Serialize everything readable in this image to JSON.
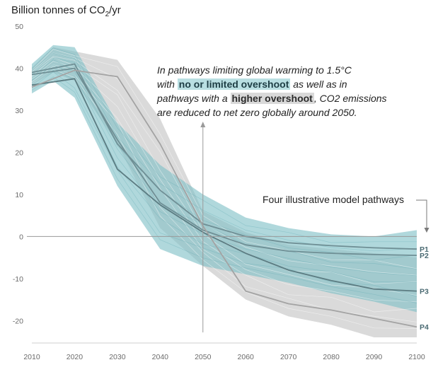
{
  "chart_data": {
    "type": "line",
    "title": "Billion tonnes of CO",
    "title_sub": "2",
    "title_suffix": "/yr",
    "xlim": [
      2010,
      2100
    ],
    "ylim": [
      -25,
      50
    ],
    "x_ticks": [
      2010,
      2020,
      2030,
      2040,
      2050,
      2060,
      2070,
      2080,
      2090,
      2100
    ],
    "y_ticks": [
      50,
      40,
      30,
      20,
      10,
      0,
      -10,
      -20
    ],
    "vertical_marker_x": 2050,
    "annotation": {
      "part1": "In pathways limiting global warming to 1.5°C",
      "part2": "with ",
      "hl1": "no or limited overshoot",
      "part3": " as well as in",
      "part4": "pathways with a ",
      "hl2": "higher overshoot",
      "part5": ", CO2 emissions",
      "part6": "are reduced to net zero globally around 2050."
    },
    "pathways_label": "Four illustrative model pathways",
    "bands": [
      {
        "name": "higher overshoot",
        "color": "#d3d3d3",
        "upper": [
          [
            2010,
            40
          ],
          [
            2015,
            45
          ],
          [
            2020,
            44
          ],
          [
            2030,
            42
          ],
          [
            2040,
            28
          ],
          [
            2050,
            6
          ],
          [
            2060,
            1
          ],
          [
            2070,
            -2
          ],
          [
            2080,
            -3
          ],
          [
            2090,
            -4
          ],
          [
            2100,
            -5
          ]
        ],
        "lower": [
          [
            2010,
            36
          ],
          [
            2015,
            39
          ],
          [
            2020,
            37
          ],
          [
            2030,
            22
          ],
          [
            2040,
            2
          ],
          [
            2050,
            -7
          ],
          [
            2060,
            -15
          ],
          [
            2070,
            -19
          ],
          [
            2080,
            -21
          ],
          [
            2090,
            -24
          ],
          [
            2100,
            -24
          ]
        ]
      },
      {
        "name": "no or limited overshoot",
        "color": "#7fc0c6",
        "upper": [
          [
            2010,
            41
          ],
          [
            2015,
            45.5
          ],
          [
            2020,
            45
          ],
          [
            2030,
            27
          ],
          [
            2040,
            17
          ],
          [
            2050,
            10
          ],
          [
            2060,
            4.5
          ],
          [
            2070,
            2
          ],
          [
            2080,
            0.5
          ],
          [
            2090,
            0
          ],
          [
            2100,
            1.5
          ]
        ],
        "lower": [
          [
            2010,
            34
          ],
          [
            2015,
            37
          ],
          [
            2020,
            33
          ],
          [
            2030,
            12
          ],
          [
            2040,
            -3
          ],
          [
            2050,
            -7
          ],
          [
            2060,
            -9
          ],
          [
            2070,
            -11
          ],
          [
            2080,
            -13.5
          ],
          [
            2090,
            -15.5
          ],
          [
            2100,
            -18
          ]
        ]
      }
    ],
    "series": [
      {
        "name": "P1",
        "color": "#6f8f95",
        "x": [
          2010,
          2020,
          2030,
          2040,
          2050,
          2060,
          2070,
          2080,
          2090,
          2100
        ],
        "y": [
          39,
          41,
          22,
          11,
          3,
          0,
          -1.5,
          -2.2,
          -2.7,
          -3
        ]
      },
      {
        "name": "P2",
        "color": "#6f8f95",
        "x": [
          2010,
          2020,
          2030,
          2040,
          2050,
          2060,
          2070,
          2080,
          2090,
          2100
        ],
        "y": [
          38.5,
          40,
          23,
          8,
          1.5,
          -2,
          -3.5,
          -4,
          -4.3,
          -4.5
        ]
      },
      {
        "name": "P3",
        "color": "#5c7c82",
        "x": [
          2010,
          2020,
          2030,
          2040,
          2050,
          2060,
          2070,
          2080,
          2090,
          2100
        ],
        "y": [
          36,
          37.5,
          16,
          7.5,
          1,
          -4,
          -8,
          -10.5,
          -12.5,
          -13
        ]
      },
      {
        "name": "P4",
        "color": "#a3a3a3",
        "x": [
          2010,
          2020,
          2030,
          2040,
          2050,
          2060,
          2070,
          2080,
          2090,
          2100
        ],
        "y": [
          35.5,
          39.5,
          38,
          22,
          2.5,
          -13,
          -16,
          -17.5,
          -19.5,
          -21.5
        ]
      }
    ]
  }
}
